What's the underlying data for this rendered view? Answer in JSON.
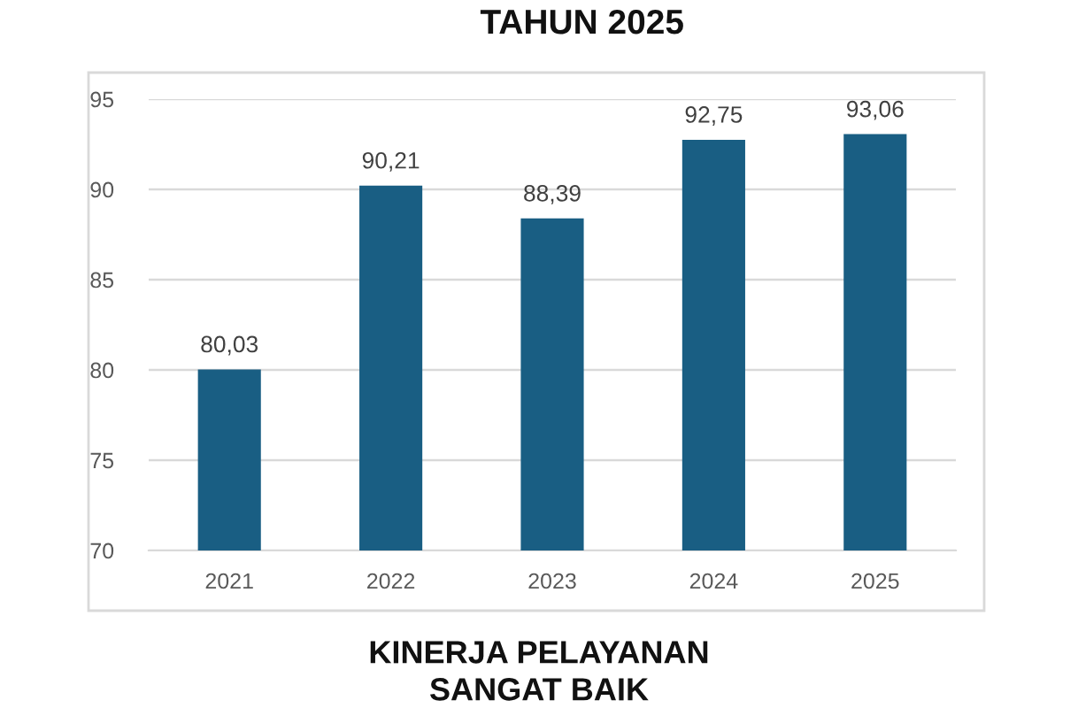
{
  "chart_data": {
    "type": "bar",
    "title": "TAHUN 2025",
    "categories": [
      "2021",
      "2022",
      "2023",
      "2024",
      "2025"
    ],
    "values": [
      80.03,
      90.21,
      88.39,
      92.75,
      93.06
    ],
    "value_labels": [
      "80,03",
      "90,21",
      "88,39",
      "92,75",
      "93,06"
    ],
    "color": "#195e83",
    "ylim": [
      70,
      95
    ],
    "yticks": [
      70,
      75,
      80,
      85,
      90,
      95
    ],
    "grid": "y",
    "legend": false,
    "annotations": [
      "KINERJA PELAYANAN",
      "SANGAT BAIK"
    ]
  }
}
